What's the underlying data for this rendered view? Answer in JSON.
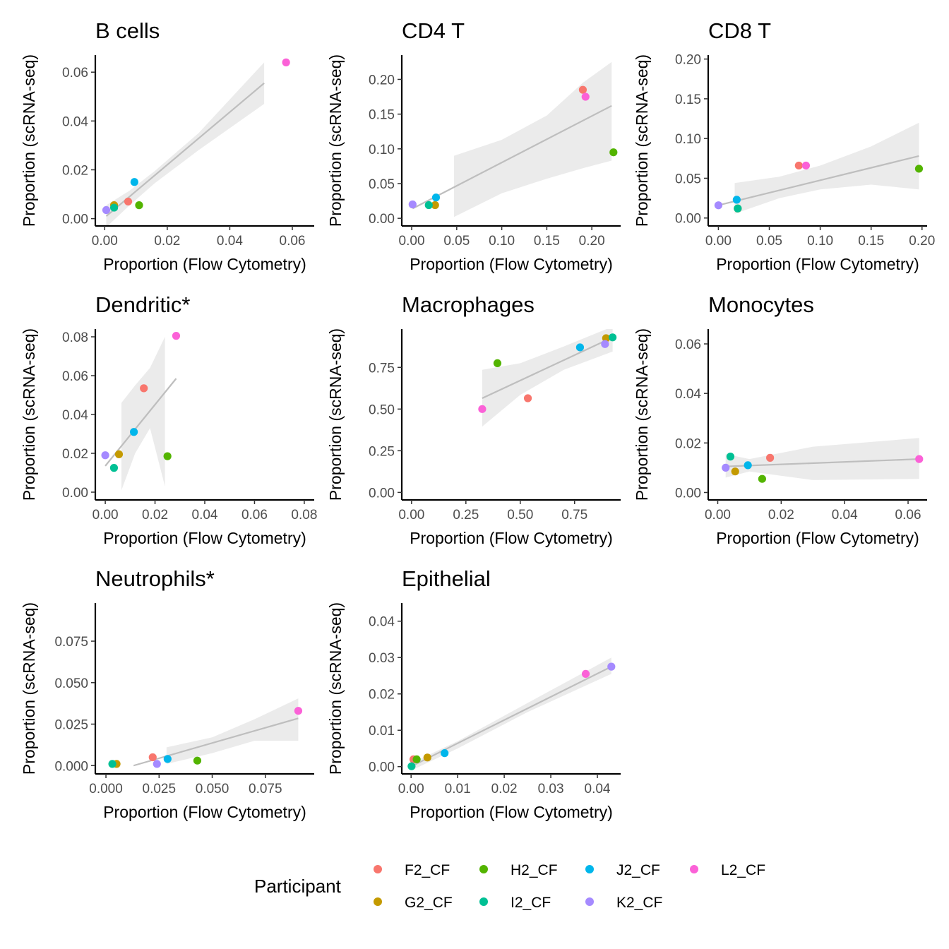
{
  "chart_data": [
    {
      "type": "scatter",
      "title": "B cells",
      "xlabel": "Proportion (Flow Cytometry)",
      "ylabel": "Proportion (scRNA-seq)",
      "xlim": [
        -0.003,
        0.067
      ],
      "ylim": [
        -0.003,
        0.067
      ],
      "xticks": [
        "0.00",
        "0.02",
        "0.04",
        "0.06"
      ],
      "yticks": [
        "0.00",
        "0.02",
        "0.04",
        "0.06"
      ],
      "points": [
        {
          "participant": "F2_CF",
          "x": 0.0075,
          "y": 0.007
        },
        {
          "participant": "G2_CF",
          "x": 0.003,
          "y": 0.0055
        },
        {
          "participant": "H2_CF",
          "x": 0.011,
          "y": 0.0055
        },
        {
          "participant": "I2_CF",
          "x": 0.003,
          "y": 0.0045
        },
        {
          "participant": "J2_CF",
          "x": 0.0095,
          "y": 0.015
        },
        {
          "participant": "K2_CF",
          "x": 0.0005,
          "y": 0.0035
        },
        {
          "participant": "L2_CF",
          "x": 0.058,
          "y": 0.064
        }
      ],
      "fit": {
        "x": [
          0.0005,
          0.051
        ],
        "y": [
          0.001,
          0.0555
        ]
      },
      "band": {
        "x": [
          0.0005,
          0.008,
          0.016,
          0.03,
          0.051
        ],
        "lower": [
          -0.0035,
          0.0055,
          0.0145,
          0.028,
          0.047
        ],
        "upper": [
          0.0055,
          0.0115,
          0.0195,
          0.035,
          0.064
        ]
      }
    },
    {
      "type": "scatter",
      "title": "CD4 T",
      "xlabel": "Proportion (Flow Cytometry)",
      "ylabel": "Proportion (scRNA-seq)",
      "xlim": [
        -0.011,
        0.232
      ],
      "ylim": [
        -0.011,
        0.235
      ],
      "xticks": [
        "0.00",
        "0.05",
        "0.10",
        "0.15",
        "0.20"
      ],
      "yticks": [
        "0.00",
        "0.05",
        "0.10",
        "0.15",
        "0.20"
      ],
      "points": [
        {
          "participant": "F2_CF",
          "x": 0.19,
          "y": 0.185
        },
        {
          "participant": "G2_CF",
          "x": 0.026,
          "y": 0.019
        },
        {
          "participant": "H2_CF",
          "x": 0.224,
          "y": 0.095
        },
        {
          "participant": "I2_CF",
          "x": 0.019,
          "y": 0.019
        },
        {
          "participant": "J2_CF",
          "x": 0.027,
          "y": 0.03
        },
        {
          "participant": "K2_CF",
          "x": 0.001,
          "y": 0.02
        },
        {
          "participant": "L2_CF",
          "x": 0.193,
          "y": 0.175
        }
      ],
      "fit": {
        "x": [
          0.001,
          0.222
        ],
        "y": [
          0.014,
          0.162
        ]
      },
      "band": {
        "x": [
          0.047,
          0.1,
          0.15,
          0.19,
          0.222
        ],
        "lower": [
          0.002,
          0.036,
          0.057,
          0.072,
          0.083
        ],
        "upper": [
          0.09,
          0.113,
          0.148,
          0.195,
          0.225
        ]
      }
    },
    {
      "type": "scatter",
      "title": "CD8 T",
      "xlabel": "Proportion (Flow Cytometry)",
      "ylabel": "Proportion (scRNA-seq)",
      "xlim": [
        -0.01,
        0.205
      ],
      "ylim": [
        -0.01,
        0.205
      ],
      "xticks": [
        "0.00",
        "0.05",
        "0.10",
        "0.15",
        "0.20"
      ],
      "yticks": [
        "0.00",
        "0.05",
        "0.10",
        "0.15",
        "0.20"
      ],
      "points": [
        {
          "participant": "F2_CF",
          "x": 0.079,
          "y": 0.066
        },
        {
          "participant": "G2_CF",
          "x": 0.019,
          "y": 0.012
        },
        {
          "participant": "H2_CF",
          "x": 0.197,
          "y": 0.062
        },
        {
          "participant": "I2_CF",
          "x": 0.019,
          "y": 0.012
        },
        {
          "participant": "J2_CF",
          "x": 0.018,
          "y": 0.023
        },
        {
          "participant": "K2_CF",
          "x": 0.0,
          "y": 0.016
        },
        {
          "participant": "L2_CF",
          "x": 0.086,
          "y": 0.066
        }
      ],
      "fit": {
        "x": [
          0.0,
          0.197
        ],
        "y": [
          0.016,
          0.078
        ]
      },
      "band": {
        "x": [
          0.016,
          0.06,
          0.1,
          0.15,
          0.197
        ],
        "lower": [
          0.0055,
          0.025,
          0.036,
          0.042,
          0.036
        ],
        "upper": [
          0.044,
          0.052,
          0.066,
          0.09,
          0.12
        ]
      }
    },
    {
      "type": "scatter",
      "title": "Dendritic*",
      "xlabel": "Proportion (Flow Cytometry)",
      "ylabel": "Proportion (scRNA-seq)",
      "xlim": [
        -0.004,
        0.084
      ],
      "ylim": [
        -0.004,
        0.084
      ],
      "xticks": [
        "0.00",
        "0.02",
        "0.04",
        "0.06",
        "0.08"
      ],
      "yticks": [
        "0.00",
        "0.02",
        "0.04",
        "0.06",
        "0.08"
      ],
      "points": [
        {
          "participant": "F2_CF",
          "x": 0.0155,
          "y": 0.0535
        },
        {
          "participant": "G2_CF",
          "x": 0.0055,
          "y": 0.0195
        },
        {
          "participant": "H2_CF",
          "x": 0.025,
          "y": 0.0185
        },
        {
          "participant": "I2_CF",
          "x": 0.0035,
          "y": 0.0125
        },
        {
          "participant": "J2_CF",
          "x": 0.0115,
          "y": 0.031
        },
        {
          "participant": "K2_CF",
          "x": 0.0,
          "y": 0.019
        },
        {
          "participant": "L2_CF",
          "x": 0.0285,
          "y": 0.0805
        }
      ],
      "fit": {
        "x": [
          0.0,
          0.0285
        ],
        "y": [
          0.0135,
          0.0585
        ]
      },
      "band": {
        "x": [
          0.0065,
          0.012,
          0.018,
          0.024
        ],
        "lower": [
          0.001,
          0.02,
          0.033,
          0.003
        ],
        "upper": [
          0.046,
          0.055,
          0.064,
          0.08
        ]
      }
    },
    {
      "type": "scatter",
      "title": "Macrophages",
      "xlabel": "Proportion (Flow Cytometry)",
      "ylabel": "Proportion (scRNA-seq)",
      "xlim": [
        -0.045,
        0.962
      ],
      "ylim": [
        -0.045,
        0.98
      ],
      "xticks": [
        "0.00",
        "0.25",
        "0.50",
        "0.75"
      ],
      "yticks": [
        "0.00",
        "0.25",
        "0.50",
        "0.75"
      ],
      "points": [
        {
          "participant": "F2_CF",
          "x": 0.535,
          "y": 0.565
        },
        {
          "participant": "G2_CF",
          "x": 0.895,
          "y": 0.925
        },
        {
          "participant": "H2_CF",
          "x": 0.395,
          "y": 0.775
        },
        {
          "participant": "I2_CF",
          "x": 0.925,
          "y": 0.93
        },
        {
          "participant": "J2_CF",
          "x": 0.775,
          "y": 0.87
        },
        {
          "participant": "K2_CF",
          "x": 0.89,
          "y": 0.89
        },
        {
          "participant": "L2_CF",
          "x": 0.325,
          "y": 0.5
        }
      ],
      "fit": {
        "x": [
          0.325,
          0.925
        ],
        "y": [
          0.565,
          0.93
        ]
      },
      "band": {
        "x": [
          0.325,
          0.5,
          0.7,
          0.925
        ],
        "lower": [
          0.395,
          0.585,
          0.735,
          0.845
        ],
        "upper": [
          0.735,
          0.775,
          0.875,
          0.995
        ]
      }
    },
    {
      "type": "scatter",
      "title": "Monocytes",
      "xlabel": "Proportion (Flow Cytometry)",
      "ylabel": "Proportion (scRNA-seq)",
      "xlim": [
        -0.003,
        0.066
      ],
      "ylim": [
        -0.003,
        0.066
      ],
      "xticks": [
        "0.00",
        "0.02",
        "0.04",
        "0.06"
      ],
      "yticks": [
        "0.00",
        "0.02",
        "0.04",
        "0.06"
      ],
      "points": [
        {
          "participant": "F2_CF",
          "x": 0.0165,
          "y": 0.014
        },
        {
          "participant": "G2_CF",
          "x": 0.0055,
          "y": 0.0085
        },
        {
          "participant": "H2_CF",
          "x": 0.014,
          "y": 0.0055
        },
        {
          "participant": "I2_CF",
          "x": 0.004,
          "y": 0.0145
        },
        {
          "participant": "J2_CF",
          "x": 0.0095,
          "y": 0.011
        },
        {
          "participant": "K2_CF",
          "x": 0.0025,
          "y": 0.01
        },
        {
          "participant": "L2_CF",
          "x": 0.0635,
          "y": 0.0135
        }
      ],
      "fit": {
        "x": [
          0.0025,
          0.0635
        ],
        "y": [
          0.0105,
          0.0135
        ]
      },
      "band": {
        "x": [
          0.0025,
          0.01,
          0.03,
          0.0635
        ],
        "lower": [
          0.006,
          0.0085,
          0.005,
          0.0055
        ],
        "upper": [
          0.0155,
          0.0135,
          0.0185,
          0.022
        ]
      }
    },
    {
      "type": "scatter",
      "title": "Neutrophils*",
      "xlabel": "Proportion (Flow Cytometry)",
      "ylabel": "Proportion (scRNA-seq)",
      "xlim": [
        -0.005,
        0.098
      ],
      "ylim": [
        -0.005,
        0.098
      ],
      "xticks": [
        "0.000",
        "0.025",
        "0.050",
        "0.075"
      ],
      "yticks": [
        "0.000",
        "0.025",
        "0.050",
        "0.075"
      ],
      "points": [
        {
          "participant": "F2_CF",
          "x": 0.022,
          "y": 0.005
        },
        {
          "participant": "G2_CF",
          "x": 0.005,
          "y": 0.001
        },
        {
          "participant": "H2_CF",
          "x": 0.043,
          "y": 0.003
        },
        {
          "participant": "I2_CF",
          "x": 0.003,
          "y": 0.001
        },
        {
          "participant": "J2_CF",
          "x": 0.029,
          "y": 0.004
        },
        {
          "participant": "K2_CF",
          "x": 0.024,
          "y": 0.001
        },
        {
          "participant": "L2_CF",
          "x": 0.0905,
          "y": 0.033
        }
      ],
      "fit": {
        "x": [
          0.013,
          0.0905
        ],
        "y": [
          0.0,
          0.0285
        ]
      },
      "band": {
        "x": [
          0.0285,
          0.05,
          0.07,
          0.0905
        ],
        "lower": [
          0.001,
          0.0075,
          0.015,
          0.015
        ],
        "upper": [
          0.011,
          0.017,
          0.028,
          0.0405
        ]
      }
    },
    {
      "type": "scatter",
      "title": "Epithelial",
      "xlabel": "Proportion (Flow Cytometry)",
      "ylabel": "Proportion (scRNA-seq)",
      "xlim": [
        -0.002,
        0.045
      ],
      "ylim": [
        -0.002,
        0.045
      ],
      "xticks": [
        "0.00",
        "0.01",
        "0.02",
        "0.03",
        "0.04"
      ],
      "yticks": [
        "0.000",
        "0.010",
        "0.020",
        "0.030",
        "0.040"
      ],
      "ytick_labels": [
        "0.00",
        "0.01",
        "0.02",
        "0.03",
        "0.04"
      ],
      "points": [
        {
          "participant": "F2_CF",
          "x": 0.0005,
          "y": 0.002
        },
        {
          "participant": "G2_CF",
          "x": 0.0035,
          "y": 0.0025
        },
        {
          "participant": "H2_CF",
          "x": 0.0012,
          "y": 0.002
        },
        {
          "participant": "I2_CF",
          "x": 0.0001,
          "y": 0.0001
        },
        {
          "participant": "J2_CF",
          "x": 0.0072,
          "y": 0.0037
        },
        {
          "participant": "K2_CF",
          "x": 0.043,
          "y": 0.0275
        },
        {
          "participant": "L2_CF",
          "x": 0.0375,
          "y": 0.0255
        }
      ],
      "fit": {
        "x": [
          0.0001,
          0.043
        ],
        "y": [
          0.0001,
          0.0275
        ]
      },
      "band": {
        "x": [
          0.0001,
          0.01,
          0.025,
          0.043
        ],
        "lower": [
          -0.001,
          0.005,
          0.015,
          0.0255
        ],
        "upper": [
          0.001,
          0.007,
          0.0175,
          0.03
        ]
      }
    }
  ],
  "legend": {
    "title": "Participant",
    "entries": [
      {
        "label": "F2_CF",
        "color": "#F8766D"
      },
      {
        "label": "G2_CF",
        "color": "#C49A00"
      },
      {
        "label": "H2_CF",
        "color": "#53B400"
      },
      {
        "label": "I2_CF",
        "color": "#00C094"
      },
      {
        "label": "J2_CF",
        "color": "#00B6EB"
      },
      {
        "label": "K2_CF",
        "color": "#A58AFF"
      },
      {
        "label": "L2_CF",
        "color": "#FB61D7"
      }
    ]
  },
  "style": {
    "fit_color": "#BEBEBE",
    "band_color": "#EBEBEB",
    "axis_color": "#000000"
  }
}
